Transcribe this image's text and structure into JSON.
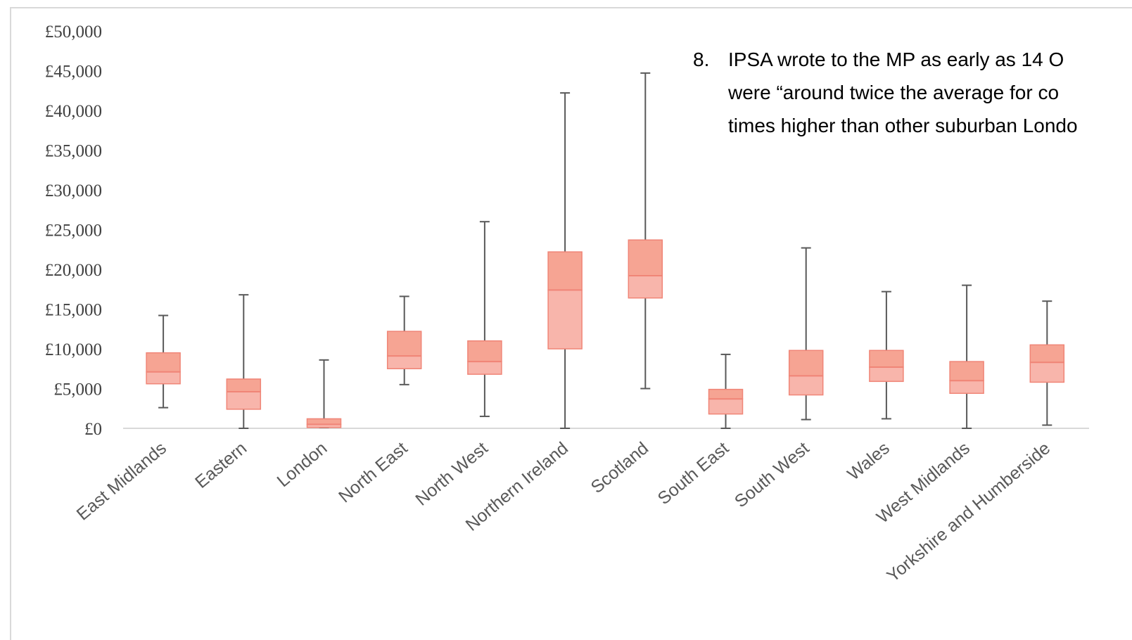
{
  "chart_data": {
    "type": "box",
    "ylim": [
      0,
      50000
    ],
    "y_ticks": [
      "£0",
      "£5,000",
      "£10,000",
      "£15,000",
      "£20,000",
      "£25,000",
      "£30,000",
      "£35,000",
      "£40,000",
      "£45,000",
      "£50,000"
    ],
    "y_tick_values": [
      0,
      5000,
      10000,
      15000,
      20000,
      25000,
      30000,
      35000,
      40000,
      45000,
      50000
    ],
    "categories": [
      "East Midlands",
      "Eastern",
      "London",
      "North East",
      "North West",
      "Northern Ireland",
      "Scotland",
      "South East",
      "South West",
      "Wales",
      "West Midlands",
      "Yorkshire and Humberside"
    ],
    "boxes": [
      {
        "min": 2600,
        "q1": 5600,
        "median": 7100,
        "q3": 9500,
        "max": 14200
      },
      {
        "min": 0,
        "q1": 2400,
        "median": 4600,
        "q3": 6200,
        "max": 16800
      },
      {
        "min": 100,
        "q1": 100,
        "median": 500,
        "q3": 1200,
        "max": 8600
      },
      {
        "min": 5500,
        "q1": 7500,
        "median": 9100,
        "q3": 12200,
        "max": 16600
      },
      {
        "min": 1500,
        "q1": 6800,
        "median": 8400,
        "q3": 11000,
        "max": 26000
      },
      {
        "min": 0,
        "q1": 10000,
        "median": 17400,
        "q3": 22200,
        "max": 42200
      },
      {
        "min": 5000,
        "q1": 16400,
        "median": 19200,
        "q3": 23700,
        "max": 44700
      },
      {
        "min": 0,
        "q1": 1800,
        "median": 3700,
        "q3": 4900,
        "max": 9300
      },
      {
        "min": 1100,
        "q1": 4200,
        "median": 6600,
        "q3": 9800,
        "max": 22700
      },
      {
        "min": 1200,
        "q1": 5900,
        "median": 7700,
        "q3": 9800,
        "max": 17200
      },
      {
        "min": 0,
        "q1": 4400,
        "median": 6000,
        "q3": 8400,
        "max": 18000
      },
      {
        "min": 400,
        "q1": 5800,
        "median": 8300,
        "q3": 10500,
        "max": 16000
      }
    ],
    "colors": {
      "upper_box": "#f6a493",
      "lower_box": "#f8b5ab",
      "box_stroke": "#f08577",
      "whisker": "#595959",
      "axis": "#d9d9d9"
    }
  },
  "overlay_text": {
    "number": "8.",
    "lines": [
      "IPSA wrote to the MP as early as 14 O",
      "were “around twice the average for co",
      "times higher than other suburban Londo"
    ]
  }
}
